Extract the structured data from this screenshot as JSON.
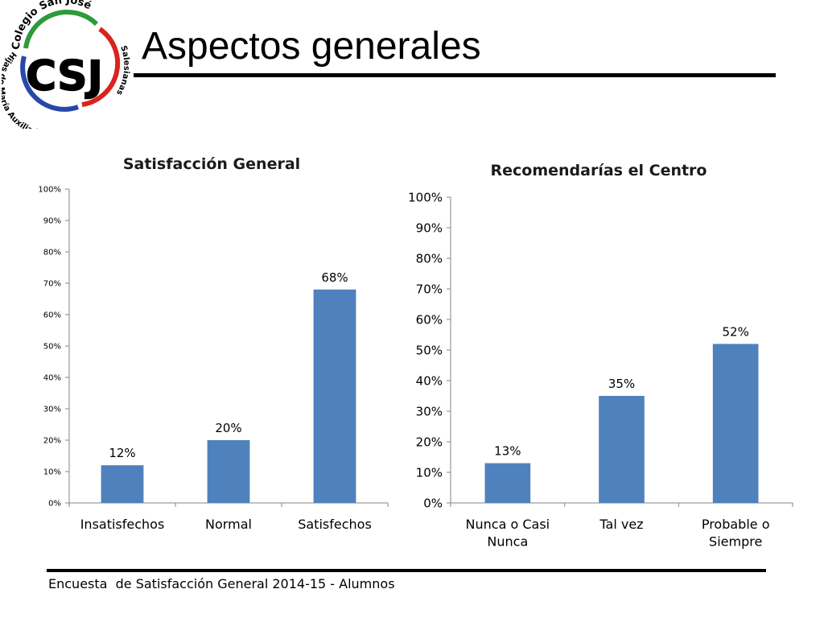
{
  "slide": {
    "title": "Aspectos generales",
    "footer": "Encuesta  de Satisfacción General 2014-15 - Alumnos"
  },
  "logo": {
    "initials": "CSJ",
    "top_text": "Colegio San José",
    "left_text": "Hijas de María Auxiliadora",
    "right_text": "Salesianas"
  },
  "colors": {
    "bar": "#4f81bd",
    "axis": "#868686",
    "logo_green": "#2e9a3a",
    "logo_red": "#d9231d",
    "logo_blue": "#2748a8"
  },
  "chart_data": [
    {
      "type": "bar",
      "title": "Satisfacción General",
      "categories": [
        "Insatisfechos",
        "Normal",
        "Satisfechos"
      ],
      "values": [
        12,
        20,
        68
      ],
      "value_labels": [
        "12%",
        "20%",
        "68%"
      ],
      "ylim": [
        0,
        100
      ],
      "yticks": [
        "0%",
        "10%",
        "20%",
        "30%",
        "40%",
        "50%",
        "60%",
        "70%",
        "80%",
        "90%",
        "100%"
      ],
      "grid": false,
      "legend": "none"
    },
    {
      "type": "bar",
      "title": "Recomendarías el Centro",
      "categories": [
        "Nunca o Casi Nunca",
        "Tal vez",
        "Probable o Siempre"
      ],
      "values": [
        13,
        35,
        52
      ],
      "value_labels": [
        "13%",
        "35%",
        "52%"
      ],
      "ylim": [
        0,
        100
      ],
      "yticks": [
        "0%",
        "10%",
        "20%",
        "30%",
        "40%",
        "50%",
        "60%",
        "70%",
        "80%",
        "90%",
        "100%"
      ],
      "grid": false,
      "legend": "none"
    }
  ]
}
